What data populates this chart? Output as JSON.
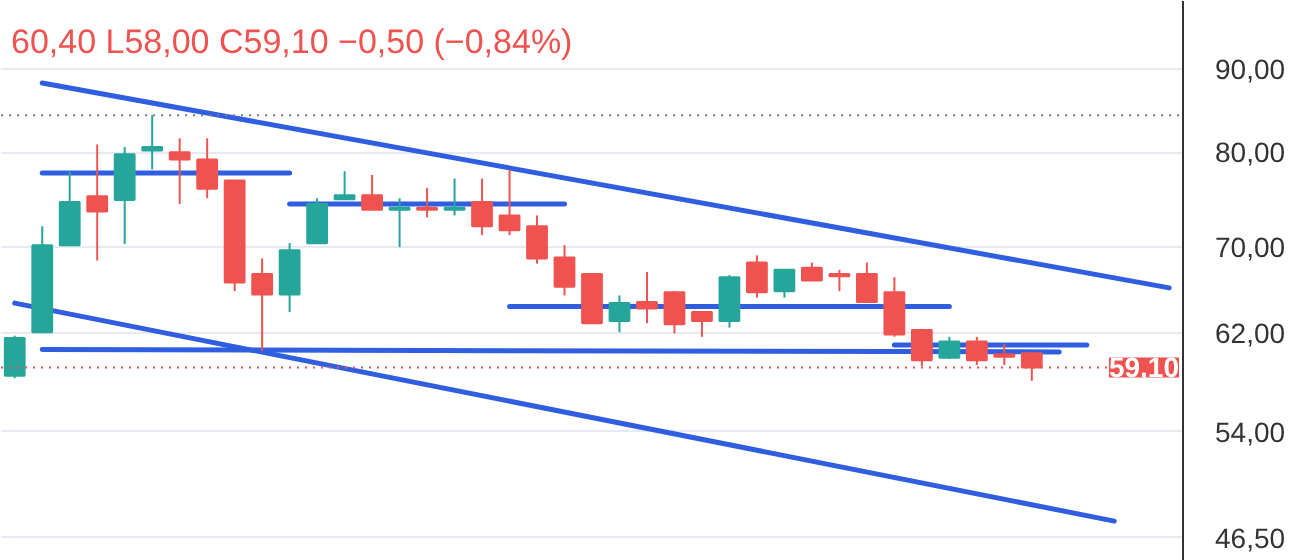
{
  "chart_data": {
    "type": "candlestick",
    "categories": [
      null,
      null,
      null,
      null,
      null,
      null,
      null,
      null,
      null,
      null,
      null,
      null,
      null,
      null,
      null,
      null,
      null,
      null,
      null,
      null,
      null,
      null,
      null,
      null,
      null,
      null,
      null,
      null,
      null,
      null,
      null,
      null,
      null,
      null,
      null,
      null,
      null,
      null,
      null,
      null,
      null,
      null,
      null
    ],
    "ohlc": [
      [
        58.4,
        61.8,
        58.2,
        61.6
      ],
      [
        62.1,
        72.1,
        62.1,
        70.2
      ],
      [
        70.2,
        77.9,
        70.2,
        74.6
      ],
      [
        75.2,
        80.9,
        68.7,
        73.6
      ],
      [
        74.8,
        80.6,
        70.3,
        79.8
      ],
      [
        80.2,
        84.3,
        78.1,
        80.6
      ],
      [
        80.0,
        81.6,
        74.4,
        79.2
      ],
      [
        79.2,
        81.6,
        75.0,
        76.0
      ],
      [
        76.9,
        76.9,
        65.8,
        66.6
      ],
      [
        67.4,
        68.9,
        60.5,
        65.5
      ],
      [
        65.5,
        70.4,
        63.9,
        69.7
      ],
      [
        70.4,
        75.0,
        70.4,
        74.4
      ],
      [
        74.9,
        77.9,
        74.8,
        75.3
      ],
      [
        75.3,
        77.5,
        73.8,
        73.8
      ],
      [
        73.8,
        75.0,
        70.0,
        74.0
      ],
      [
        74.0,
        76.1,
        73.0,
        73.8
      ],
      [
        73.8,
        77.1,
        73.2,
        74.0
      ],
      [
        74.6,
        77.1,
        71.2,
        72.1
      ],
      [
        73.2,
        78.1,
        71.2,
        71.7
      ],
      [
        72.1,
        73.2,
        68.4,
        68.9
      ],
      [
        69.0,
        70.2,
        65.4,
        66.2
      ],
      [
        67.4,
        67.4,
        62.9,
        62.9
      ],
      [
        63.1,
        65.4,
        62.1,
        64.7
      ],
      [
        64.8,
        67.6,
        62.9,
        64.2
      ],
      [
        65.7,
        65.8,
        62.0,
        62.8
      ],
      [
        63.9,
        63.9,
        61.7,
        63.1
      ],
      [
        63.1,
        67.3,
        62.5,
        67.1
      ],
      [
        68.5,
        69.2,
        65.2,
        65.7
      ],
      [
        65.8,
        67.8,
        65.2,
        67.8
      ],
      [
        68.0,
        68.5,
        66.8,
        66.8
      ],
      [
        67.4,
        67.8,
        65.8,
        67.2
      ],
      [
        67.4,
        68.5,
        64.8,
        64.8
      ],
      [
        65.7,
        67.1,
        61.7,
        61.9
      ],
      [
        62.3,
        62.4,
        59.2,
        59.7
      ],
      [
        59.9,
        61.7,
        59.8,
        61.3
      ],
      [
        61.3,
        61.7,
        59.3,
        59.7
      ],
      [
        60.2,
        61.1,
        59.3,
        60.0
      ],
      [
        60.3,
        60.4,
        58.0,
        59.1
      ],
      null,
      null,
      null,
      null,
      null
    ],
    "colors": [
      "#26a69a",
      "#26a69a",
      "#26a69a",
      "#ef5350",
      "#26a69a",
      "#26a69a",
      "#ef5350",
      "#ef5350",
      "#ef5350",
      "#ef5350",
      "#26a69a",
      "#26a69a",
      "#26a69a",
      "#ef5350",
      "#26a69a",
      "#ef5350",
      "#26a69a",
      "#ef5350",
      "#ef5350",
      "#ef5350",
      "#ef5350",
      "#ef5350",
      "#26a69a",
      "#ef5350",
      "#ef5350",
      "#ef5350",
      "#26a69a",
      "#ef5350",
      "#26a69a",
      "#ef5350",
      "#ef5350",
      "#ef5350",
      "#ef5350",
      "#ef5350",
      "#26a69a",
      "#ef5350",
      "#ef5350",
      "#ef5350",
      null,
      null,
      null,
      null,
      null
    ],
    "series": [
      {
        "type": "line",
        "color": "#2f5fe0",
        "values": [
          null,
          88.2,
          null,
          null,
          null,
          null,
          null,
          null,
          null,
          null,
          null,
          null,
          null,
          null,
          null,
          null,
          null,
          null,
          null,
          null,
          null,
          null,
          null,
          null,
          null,
          null,
          null,
          null,
          null,
          null,
          null,
          null,
          null,
          null,
          null,
          null,
          null,
          null,
          null,
          null,
          null,
          null,
          66.1
        ]
      },
      {
        "type": "line",
        "color": "#2f5fe0",
        "values": [
          64.7,
          null,
          null,
          null,
          null,
          null,
          null,
          null,
          null,
          null,
          null,
          null,
          null,
          null,
          null,
          null,
          null,
          null,
          null,
          null,
          null,
          null,
          null,
          null,
          null,
          null,
          null,
          null,
          null,
          null,
          null,
          null,
          null,
          null,
          null,
          null,
          null,
          null,
          null,
          null,
          47.6,
          null,
          null
        ]
      },
      {
        "type": "line",
        "color": "#2f5fe0",
        "values": [
          null,
          60.6,
          null,
          null,
          null,
          null,
          null,
          null,
          null,
          null,
          null,
          null,
          null,
          null,
          null,
          null,
          null,
          null,
          null,
          null,
          null,
          null,
          null,
          null,
          null,
          null,
          null,
          null,
          null,
          null,
          null,
          null,
          null,
          null,
          null,
          null,
          null,
          null,
          60.4,
          null,
          null,
          null,
          null
        ]
      },
      {
        "type": "line",
        "color": "#2f5fe0",
        "values": [
          null,
          77.7,
          null,
          null,
          null,
          null,
          null,
          null,
          null,
          null,
          77.7,
          null,
          null,
          null,
          null,
          null,
          null,
          null,
          null,
          null,
          null,
          null,
          null,
          null,
          null,
          null,
          null,
          null,
          null,
          null,
          null,
          null,
          null,
          null,
          null,
          null,
          null,
          null,
          null,
          null,
          null,
          null,
          null
        ]
      },
      {
        "type": "line",
        "color": "#2f5fe0",
        "values": [
          null,
          null,
          null,
          null,
          null,
          null,
          null,
          null,
          null,
          null,
          74.4,
          null,
          null,
          null,
          null,
          null,
          null,
          null,
          null,
          null,
          74.4,
          null,
          null,
          null,
          null,
          null,
          null,
          null,
          null,
          null,
          null,
          null,
          null,
          null,
          null,
          null,
          null,
          null,
          null,
          null,
          null,
          null,
          null
        ]
      },
      {
        "type": "line",
        "color": "#2f5fe0",
        "values": [
          null,
          null,
          null,
          null,
          null,
          null,
          null,
          null,
          null,
          null,
          null,
          null,
          null,
          null,
          null,
          null,
          null,
          null,
          64.4,
          null,
          null,
          null,
          null,
          null,
          null,
          null,
          null,
          null,
          null,
          null,
          null,
          null,
          null,
          null,
          64.4,
          null,
          null,
          null,
          null,
          null,
          null,
          null,
          null
        ]
      },
      {
        "type": "line",
        "color": "#2f5fe0",
        "values": [
          null,
          null,
          null,
          null,
          null,
          null,
          null,
          null,
          null,
          null,
          null,
          null,
          null,
          null,
          null,
          null,
          null,
          null,
          null,
          null,
          null,
          null,
          null,
          null,
          null,
          null,
          null,
          null,
          null,
          null,
          null,
          null,
          61.0,
          null,
          null,
          null,
          null,
          null,
          null,
          61.0,
          null,
          null,
          null
        ]
      }
    ],
    "ylim": [
      45.0,
      99.0
    ],
    "log": "y",
    "yticks": [
      {
        "value": 46.5,
        "label": "46,50"
      },
      {
        "value": 54,
        "label": "54,00"
      },
      {
        "value": 62,
        "label": "62,00"
      },
      {
        "value": 70,
        "label": "70,00"
      },
      {
        "value": 80,
        "label": "80,00"
      },
      {
        "value": 90,
        "label": "90,00"
      }
    ],
    "tick_labels": "y",
    "grid": "y",
    "ref_lines": [
      {
        "axis": "y",
        "value": 59.1,
        "label": "59,10",
        "color": "#ef5350",
        "line_style": "dotted"
      },
      {
        "axis": "y",
        "value": 84.3,
        "color": "#787b86",
        "line_style": "dotted"
      }
    ],
    "annotations": [
      "60,40 L58,00 C59,10 −0,50 (−0,84%)"
    ]
  }
}
